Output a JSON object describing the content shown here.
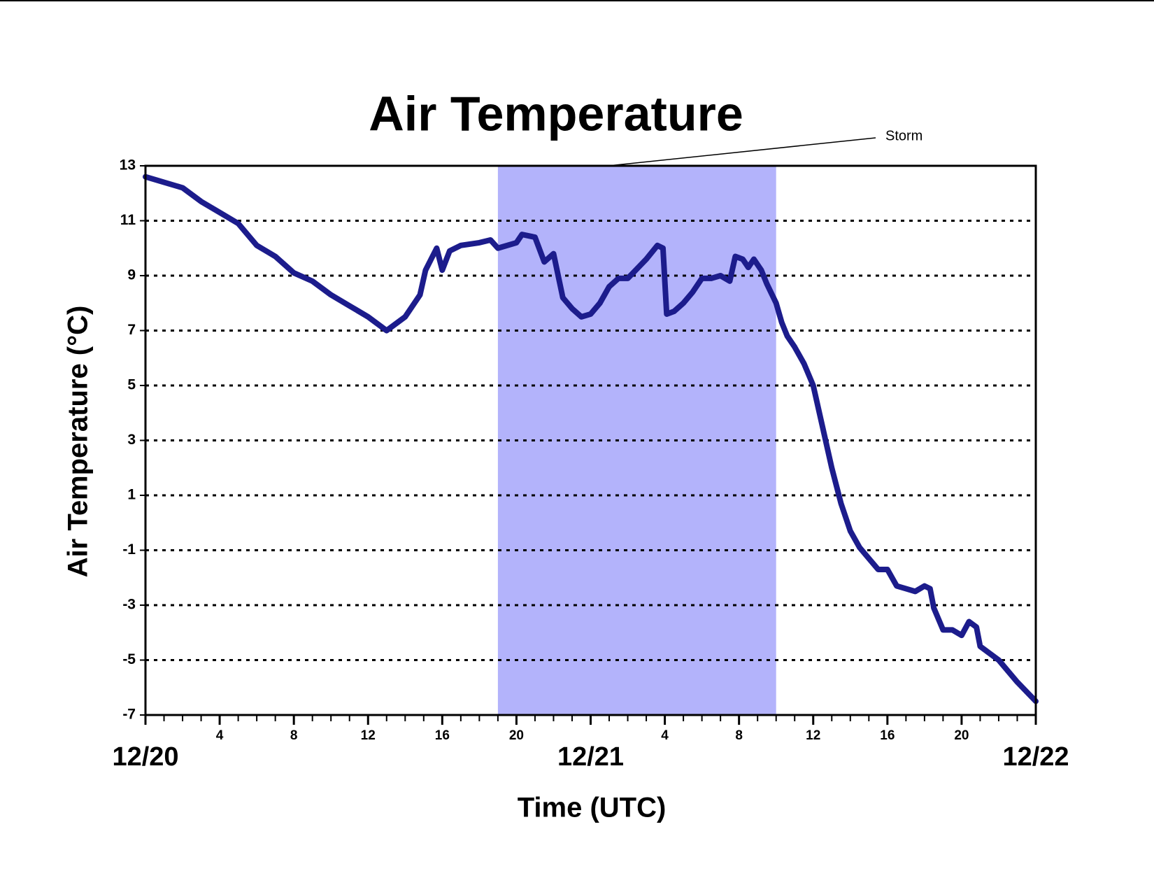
{
  "chart_data": {
    "type": "line",
    "title": "Air Temperature",
    "xlabel": "Time (UTC)",
    "ylabel": "Air Temperature (°C)",
    "xlim": [
      0,
      48
    ],
    "ylim": [
      -7,
      13
    ],
    "yticks": [
      -7,
      -5,
      -3,
      -1,
      1,
      3,
      5,
      7,
      9,
      11,
      13
    ],
    "xticks": [
      {
        "value": 0,
        "label": "12/20"
      },
      4,
      8,
      12,
      16,
      20,
      {
        "value": 24,
        "label": "12/21"
      },
      {
        "value": 28,
        "label": "4"
      },
      {
        "value": 32,
        "label": "8"
      },
      {
        "value": 36,
        "label": "12"
      },
      {
        "value": 40,
        "label": "16"
      },
      {
        "value": 44,
        "label": "20"
      },
      {
        "value": 48,
        "label": "12/22"
      }
    ],
    "xminorticks": [
      0,
      1,
      2,
      3,
      4,
      5,
      6,
      7,
      8,
      9,
      10,
      11,
      12,
      13,
      14,
      15,
      16,
      17,
      18,
      19,
      20,
      21,
      22,
      23,
      24,
      25,
      26,
      27,
      28,
      29,
      30,
      31,
      32,
      33,
      34,
      35,
      36,
      37,
      38,
      39,
      40,
      41,
      42,
      43,
      44,
      45,
      46,
      47,
      48
    ],
    "grid": true,
    "span": {
      "label": "Storm",
      "x": [
        19,
        34
      ],
      "color": "#b3b3fb"
    },
    "series": [
      {
        "name": "Air Temperature",
        "color": "#1c1c8c",
        "x": [
          0,
          1,
          2,
          3,
          4,
          5,
          6,
          7,
          8,
          9,
          10,
          11,
          12,
          13,
          14,
          14.8,
          15.1,
          15.7,
          16,
          16.4,
          17,
          18,
          18.6,
          19,
          20,
          20.3,
          21,
          21.5,
          22,
          22.5,
          23,
          23.5,
          24,
          24.5,
          25,
          25.5,
          26,
          27,
          27.6,
          27.9,
          28.1,
          28.5,
          29,
          29.5,
          30,
          30.5,
          31,
          31.5,
          31.8,
          32.2,
          32.5,
          32.8,
          33.2,
          33.5,
          34,
          34.3,
          34.6,
          35,
          35.5,
          36,
          36.5,
          37,
          37.5,
          38,
          38.5,
          39,
          39.5,
          40,
          40.5,
          41,
          41.5,
          42,
          42.3,
          42.5,
          43,
          43.5,
          44,
          44.4,
          44.8,
          45,
          46,
          47,
          48
        ],
        "values": [
          12.6,
          12.4,
          12.2,
          11.7,
          11.3,
          10.9,
          10.1,
          9.7,
          9.1,
          8.8,
          8.3,
          7.9,
          7.5,
          7.0,
          7.5,
          8.3,
          9.2,
          10.0,
          9.2,
          9.9,
          10.1,
          10.2,
          10.3,
          10.0,
          10.2,
          10.5,
          10.4,
          9.5,
          9.8,
          8.2,
          7.8,
          7.5,
          7.6,
          8.0,
          8.6,
          8.9,
          8.9,
          9.6,
          10.1,
          10.0,
          7.6,
          7.7,
          8.0,
          8.4,
          8.9,
          8.9,
          9.0,
          8.8,
          9.7,
          9.6,
          9.3,
          9.6,
          9.2,
          8.7,
          8.0,
          7.3,
          6.8,
          6.4,
          5.8,
          5.0,
          3.5,
          2.0,
          0.7,
          -0.3,
          -0.9,
          -1.3,
          -1.7,
          -1.7,
          -2.3,
          -2.4,
          -2.5,
          -2.3,
          -2.4,
          -3.1,
          -3.9,
          -3.9,
          -4.1,
          -3.6,
          -3.8,
          -4.5,
          -5.0,
          -5.8,
          -6.5
        ]
      }
    ]
  }
}
